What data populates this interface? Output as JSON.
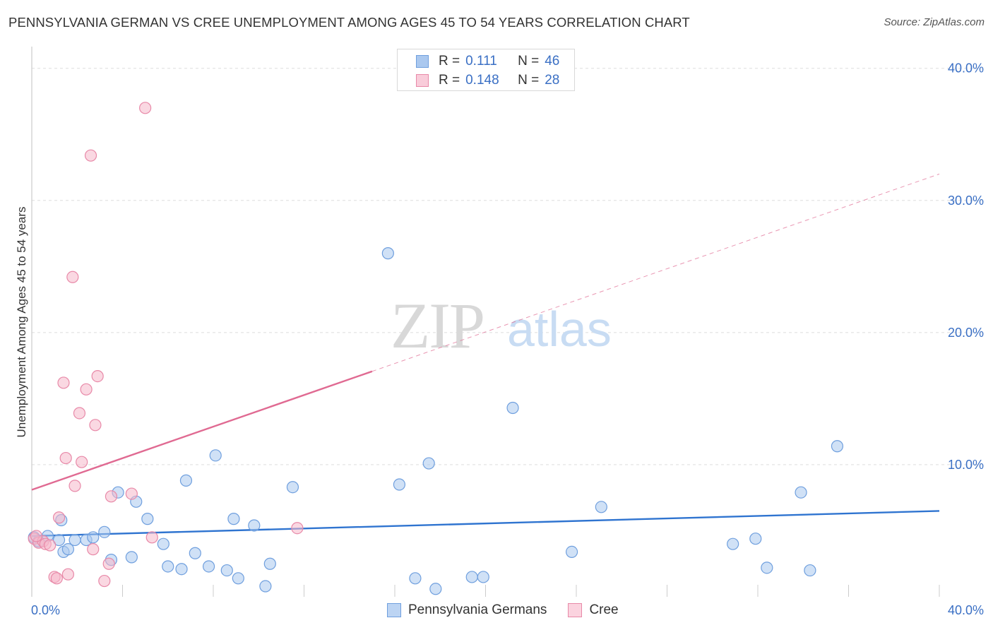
{
  "title": "PENNSYLVANIA GERMAN VS CREE UNEMPLOYMENT AMONG AGES 45 TO 54 YEARS CORRELATION CHART",
  "source": "Source: ZipAtlas.com",
  "watermark": {
    "zip": "ZIP",
    "atlas": "atlas"
  },
  "legend_top": {
    "rows": [
      {
        "r_label": "R =",
        "r_value": "0.111",
        "n_label": "N =",
        "n_value": "46"
      },
      {
        "r_label": "R =",
        "r_value": "0.148",
        "n_label": "N =",
        "n_value": "28"
      }
    ]
  },
  "legend_bottom": {
    "items": [
      {
        "label": "Pennsylvania Germans"
      },
      {
        "label": "Cree"
      }
    ]
  },
  "colors": {
    "blue_fill": "#aac8ef",
    "blue_stroke": "#6f9fde",
    "blue_line": "#2f74d0",
    "pink_fill": "#f5b8cb",
    "pink_stroke": "#e889a8",
    "pink_line": "#e06a92",
    "grid": "#dddddd",
    "tick_label": "#3a6fc4"
  },
  "chart_data": {
    "type": "scatter",
    "title": "PENNSYLVANIA GERMAN VS CREE UNEMPLOYMENT AMONG AGES 45 TO 54 YEARS CORRELATION CHART",
    "xlabel": "",
    "ylabel": "Unemployment Among Ages 45 to 54 years",
    "xlim": [
      0,
      40
    ],
    "ylim": [
      0,
      41
    ],
    "x_tick_labels": [
      {
        "value": 0,
        "label": "0.0%"
      },
      {
        "value": 40,
        "label": "40.0%"
      }
    ],
    "y_tick_labels": [
      {
        "value": 10,
        "label": "10.0%"
      },
      {
        "value": 20,
        "label": "20.0%"
      },
      {
        "value": 30,
        "label": "30.0%"
      },
      {
        "value": 40,
        "label": "40.0%"
      }
    ],
    "series": [
      {
        "name": "Pennsylvania Germans",
        "r": 0.111,
        "n": 46,
        "trend": {
          "x0": 0,
          "y0": 4.6,
          "x1": 40,
          "y1": 6.5,
          "solid_to": 40
        },
        "points": [
          [
            0.1,
            4.5
          ],
          [
            0.3,
            4.2
          ],
          [
            0.7,
            4.6
          ],
          [
            1.2,
            4.3
          ],
          [
            1.3,
            5.8
          ],
          [
            1.4,
            3.4
          ],
          [
            1.6,
            3.6
          ],
          [
            1.9,
            4.3
          ],
          [
            2.4,
            4.3
          ],
          [
            2.7,
            4.5
          ],
          [
            3.2,
            4.9
          ],
          [
            3.5,
            2.8
          ],
          [
            3.8,
            7.9
          ],
          [
            4.4,
            3.0
          ],
          [
            4.6,
            7.2
          ],
          [
            5.1,
            5.9
          ],
          [
            5.8,
            4.0
          ],
          [
            6.0,
            2.3
          ],
          [
            6.6,
            2.1
          ],
          [
            6.8,
            8.8
          ],
          [
            7.2,
            3.3
          ],
          [
            7.8,
            2.3
          ],
          [
            8.1,
            10.7
          ],
          [
            8.6,
            2.0
          ],
          [
            8.9,
            5.9
          ],
          [
            9.1,
            1.4
          ],
          [
            9.8,
            5.4
          ],
          [
            10.3,
            0.8
          ],
          [
            10.5,
            2.5
          ],
          [
            11.5,
            8.3
          ],
          [
            15.7,
            26.0
          ],
          [
            16.2,
            8.5
          ],
          [
            16.9,
            1.4
          ],
          [
            17.5,
            10.1
          ],
          [
            17.8,
            0.6
          ],
          [
            19.4,
            1.5
          ],
          [
            19.9,
            1.5
          ],
          [
            21.2,
            14.3
          ],
          [
            23.8,
            3.4
          ],
          [
            25.1,
            6.8
          ],
          [
            30.9,
            4.0
          ],
          [
            31.9,
            4.4
          ],
          [
            32.4,
            2.2
          ],
          [
            33.9,
            7.9
          ],
          [
            34.3,
            2.0
          ],
          [
            35.5,
            11.4
          ]
        ]
      },
      {
        "name": "Cree",
        "r": 0.148,
        "n": 28,
        "trend": {
          "x0": 0,
          "y0": 8.1,
          "x1": 40,
          "y1": 32.0,
          "solid_to": 15
        },
        "points": [
          [
            0.1,
            4.4
          ],
          [
            0.3,
            4.1
          ],
          [
            0.5,
            4.2
          ],
          [
            0.6,
            4.0
          ],
          [
            0.8,
            3.9
          ],
          [
            1.0,
            1.5
          ],
          [
            1.1,
            1.4
          ],
          [
            1.2,
            6.0
          ],
          [
            1.4,
            16.2
          ],
          [
            1.5,
            10.5
          ],
          [
            1.6,
            1.7
          ],
          [
            1.8,
            24.2
          ],
          [
            1.9,
            8.4
          ],
          [
            2.1,
            13.9
          ],
          [
            2.2,
            10.2
          ],
          [
            2.4,
            15.7
          ],
          [
            2.6,
            33.4
          ],
          [
            2.7,
            3.6
          ],
          [
            2.8,
            13.0
          ],
          [
            2.9,
            16.7
          ],
          [
            3.2,
            1.2
          ],
          [
            3.4,
            2.5
          ],
          [
            3.5,
            7.6
          ],
          [
            4.4,
            7.8
          ],
          [
            5.0,
            37.0
          ],
          [
            5.3,
            4.5
          ],
          [
            11.7,
            5.2
          ],
          [
            0.2,
            4.6
          ]
        ]
      }
    ]
  }
}
